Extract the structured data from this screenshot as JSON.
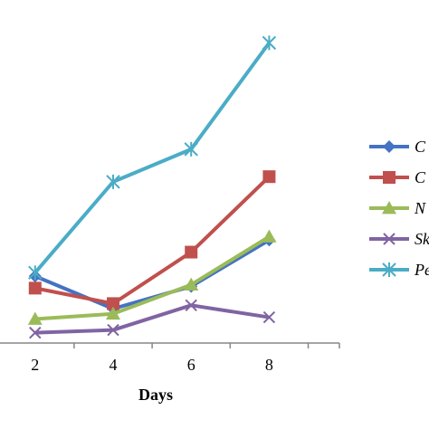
{
  "chart_data": {
    "type": "line",
    "title": "",
    "xlabel": "Days",
    "ylabel": "",
    "x": [
      2,
      4,
      6,
      8
    ],
    "xlim": [
      1.1,
      9.8
    ],
    "ylim": [
      0,
      10
    ],
    "x_tick_labels": [
      "2",
      "4",
      "6",
      "8"
    ],
    "grid": false,
    "legend_placement": "right",
    "series": [
      {
        "name": "C",
        "values": [
          1.95,
          1.0,
          1.65,
          3.0
        ],
        "color": "#4472C4",
        "marker": "diamond"
      },
      {
        "name": "C",
        "values": [
          1.6,
          1.15,
          2.65,
          4.85
        ],
        "color": "#C0504D",
        "marker": "square"
      },
      {
        "name": "N",
        "values": [
          0.7,
          0.85,
          1.7,
          3.1
        ],
        "color": "#9BBB59",
        "marker": "triangle"
      },
      {
        "name": "Sk",
        "values": [
          0.3,
          0.38,
          1.1,
          0.75
        ],
        "color": "#8064A2",
        "marker": "x"
      },
      {
        "name": "Pe",
        "values": [
          2.05,
          4.7,
          5.65,
          8.75
        ],
        "color": "#4BACC6",
        "marker": "star"
      }
    ]
  }
}
